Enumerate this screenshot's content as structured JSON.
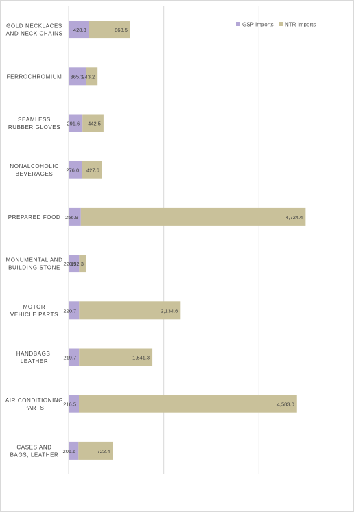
{
  "chart_data": {
    "type": "bar",
    "orientation": "horizontal",
    "stacked": true,
    "categories": [
      "GOLD NECKLACES AND NECK CHAINS",
      "FERROCHROMIUM",
      "SEAMLESS RUBBER GLOVES",
      "NONALCOHOLIC BEVERAGES",
      "PREPARED FOOD",
      "MONUMENTAL AND BUILDING STONE",
      "MOTOR VEHICLE PARTS",
      "HANDBAGS, LEATHER",
      "AIR CONDITIONING PARTS",
      "CASES AND BAGS, LEATHER"
    ],
    "series": [
      {
        "name": "GSP Imports",
        "color": "#b4a7d6",
        "values": [
          428.3,
          365.3,
          291.6,
          276.0,
          256.9,
          220.9,
          220.7,
          219.7,
          216.5,
          206.6
        ],
        "labels": [
          "428.3",
          "365.3",
          "291.6",
          "276.0",
          "256.9",
          "220.9",
          "220.7",
          "219.7",
          "216.5",
          "206.6"
        ]
      },
      {
        "name": "NTR Imports",
        "color": "#c9c19a",
        "values": [
          868.5,
          243.2,
          442.5,
          427.6,
          4724.4,
          152.3,
          2134.6,
          1541.3,
          4583.0,
          722.4
        ],
        "labels": [
          "868.5",
          "243.2",
          "442.5",
          "427.6",
          "4,724.4",
          "152.3",
          "2,134.6",
          "1,541.3",
          "4,583.0",
          "722.4"
        ]
      }
    ],
    "xlim": [
      0,
      6000
    ],
    "gridlines_at": [
      0,
      2000,
      4000,
      6000
    ],
    "grid": true,
    "legend_position": "top-right",
    "title": "",
    "xlabel": "",
    "ylabel": ""
  }
}
